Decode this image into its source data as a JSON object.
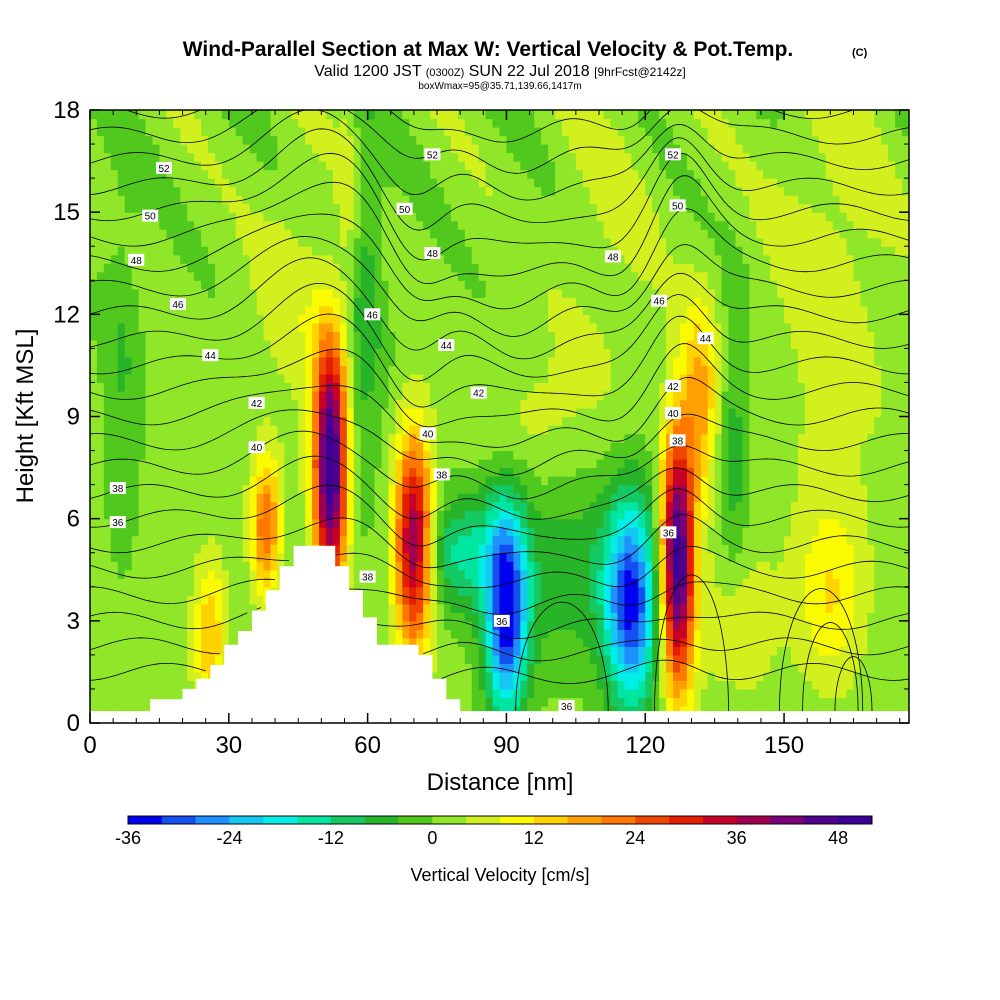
{
  "title": {
    "main": "Wind-Parallel Section at Max W: Vertical Velocity & Pot.Temp.",
    "mark": "(C)",
    "valid_prefix": "Valid 1200 JST ",
    "valid_z": "(0300Z)",
    "valid_date": " SUN 22 Jul 2018 ",
    "valid_fcst": "[9hrFcst@2142z]",
    "box_info": "boxWmax=95@35.71,139.66,1417m"
  },
  "chart_data": {
    "type": "heatmap",
    "xlabel": "Distance [nm]",
    "ylabel": "Height [Kft MSL]",
    "xlim": [
      0,
      177
    ],
    "ylim": [
      0,
      18
    ],
    "xticks": [
      "0",
      "30",
      "60",
      "90",
      "120",
      "150"
    ],
    "yticks": [
      "0",
      "3",
      "6",
      "9",
      "12",
      "15",
      "18"
    ],
    "colorbar": {
      "label": "Vertical Velocity [cm/s]",
      "range": [
        -36,
        52
      ],
      "step": 4,
      "tick_labels": [
        "-36",
        "-24",
        "-12",
        "0",
        "12",
        "24",
        "36",
        "48"
      ],
      "colors": [
        "#0000f0",
        "#1450f0",
        "#1e90ff",
        "#14c8f0",
        "#00eee6",
        "#00e6a0",
        "#14c864",
        "#28b428",
        "#50c81e",
        "#90e628",
        "#d2f01e",
        "#fafa00",
        "#ffd200",
        "#ffa000",
        "#ff7800",
        "#f04600",
        "#e61e00",
        "#c80028",
        "#a00050",
        "#780078",
        "#50008c",
        "#3c0096"
      ]
    },
    "terrain_profile_kft": [
      [
        0,
        0.35
      ],
      [
        13,
        0.35
      ],
      [
        13,
        0.7
      ],
      [
        20,
        0.7
      ],
      [
        20,
        1.0
      ],
      [
        23,
        1.0
      ],
      [
        23,
        1.3
      ],
      [
        26,
        1.3
      ],
      [
        26,
        1.7
      ],
      [
        29,
        1.7
      ],
      [
        29,
        2.3
      ],
      [
        32,
        2.3
      ],
      [
        32,
        2.7
      ],
      [
        35,
        2.7
      ],
      [
        35,
        3.3
      ],
      [
        38,
        3.3
      ],
      [
        38,
        3.9
      ],
      [
        41,
        3.9
      ],
      [
        41,
        4.6
      ],
      [
        44,
        4.6
      ],
      [
        44,
        5.2
      ],
      [
        53,
        5.2
      ],
      [
        53,
        4.6
      ],
      [
        56,
        4.6
      ],
      [
        56,
        3.9
      ],
      [
        59,
        3.9
      ],
      [
        59,
        3.1
      ],
      [
        62,
        3.1
      ],
      [
        62,
        2.3
      ],
      [
        71,
        2.3
      ],
      [
        71,
        2.0
      ],
      [
        74,
        2.0
      ],
      [
        74,
        1.3
      ],
      [
        77,
        1.3
      ],
      [
        77,
        0.7
      ],
      [
        80,
        0.7
      ],
      [
        80,
        0.35
      ],
      [
        177,
        0.35
      ]
    ],
    "vertical_velocity_cells": [
      {
        "x": 52,
        "z": 7.6,
        "sx": 2.5,
        "sz": 2.6,
        "w": 52
      },
      {
        "x": 38,
        "z": 5.8,
        "sx": 2.2,
        "sz": 1.4,
        "w": 22
      },
      {
        "x": 26,
        "z": 2.5,
        "sx": 2.5,
        "sz": 1.6,
        "w": 14
      },
      {
        "x": 70,
        "z": 5.3,
        "sx": 2.8,
        "sz": 2.2,
        "w": 40
      },
      {
        "x": 90,
        "z": 3.3,
        "sx": 3.2,
        "sz": 2.2,
        "w": -36
      },
      {
        "x": 80,
        "z": 5.0,
        "sx": 6.0,
        "sz": 1.2,
        "w": -14
      },
      {
        "x": 117,
        "z": 3.5,
        "sx": 4.0,
        "sz": 2.2,
        "w": -33
      },
      {
        "x": 104,
        "z": 4.5,
        "sx": 10.0,
        "sz": 2.0,
        "w": -8
      },
      {
        "x": 127,
        "z": 4.8,
        "sx": 2.5,
        "sz": 2.6,
        "w": 50
      },
      {
        "x": 132,
        "z": 9.5,
        "sx": 2.8,
        "sz": 2.0,
        "w": 16
      },
      {
        "x": 58,
        "z": 12.5,
        "sx": 3.5,
        "sz": 4.0,
        "w": -10
      },
      {
        "x": 56,
        "z": 14.5,
        "sx": 2.0,
        "sz": 3.0,
        "w": 9
      },
      {
        "x": 44,
        "z": 12.5,
        "sx": 6.0,
        "sz": 2.5,
        "w": 5
      },
      {
        "x": 96,
        "z": 9.0,
        "sx": 8.0,
        "sz": 1.4,
        "w": 4
      },
      {
        "x": 160,
        "z": 3.8,
        "sx": 5.0,
        "sz": 1.8,
        "w": 10
      },
      {
        "x": 140,
        "z": 3.0,
        "sx": 6.0,
        "sz": 1.6,
        "w": 6
      },
      {
        "x": 7,
        "z": 10.5,
        "sx": 3.0,
        "sz": 4.0,
        "w": -5
      },
      {
        "x": 160,
        "z": 13.0,
        "sx": 9.0,
        "sz": 5.0,
        "w": 5
      },
      {
        "x": 112,
        "z": 14.0,
        "sx": 8.0,
        "sz": 4.0,
        "w": 3
      },
      {
        "x": 139,
        "z": 8.0,
        "sx": 2.5,
        "sz": 3.0,
        "w": -8
      }
    ],
    "potential_temperature": {
      "levels_c": [
        30,
        31,
        32,
        33,
        34,
        35,
        36,
        37,
        38,
        39,
        40,
        41,
        42,
        43,
        44,
        45,
        46,
        47,
        48,
        49,
        50,
        51,
        52,
        53,
        54
      ],
      "labels": [
        {
          "text": "52",
          "x": 16,
          "z": 16.3
        },
        {
          "text": "50",
          "x": 13,
          "z": 14.9
        },
        {
          "text": "48",
          "x": 10,
          "z": 13.6
        },
        {
          "text": "46",
          "x": 19,
          "z": 12.3
        },
        {
          "text": "44",
          "x": 26,
          "z": 10.8
        },
        {
          "text": "42",
          "x": 36,
          "z": 9.4
        },
        {
          "text": "40",
          "x": 36,
          "z": 8.1
        },
        {
          "text": "38",
          "x": 6,
          "z": 6.9
        },
        {
          "text": "36",
          "x": 6,
          "z": 5.9
        },
        {
          "text": "52",
          "x": 74,
          "z": 16.7
        },
        {
          "text": "50",
          "x": 68,
          "z": 15.1
        },
        {
          "text": "48",
          "x": 74,
          "z": 13.8
        },
        {
          "text": "46",
          "x": 61,
          "z": 12.0
        },
        {
          "text": "44",
          "x": 77,
          "z": 11.1
        },
        {
          "text": "42",
          "x": 84,
          "z": 9.7
        },
        {
          "text": "40",
          "x": 73,
          "z": 8.5
        },
        {
          "text": "38",
          "x": 76,
          "z": 7.3
        },
        {
          "text": "38",
          "x": 60,
          "z": 4.3
        },
        {
          "text": "36",
          "x": 89,
          "z": 3.0
        },
        {
          "text": "36",
          "x": 103,
          "z": 0.5
        },
        {
          "text": "48",
          "x": 113,
          "z": 13.7
        },
        {
          "text": "52",
          "x": 126,
          "z": 16.7
        },
        {
          "text": "50",
          "x": 127,
          "z": 15.2
        },
        {
          "text": "46",
          "x": 123,
          "z": 12.4
        },
        {
          "text": "44",
          "x": 133,
          "z": 11.3
        },
        {
          "text": "42",
          "x": 126,
          "z": 9.9
        },
        {
          "text": "40",
          "x": 126,
          "z": 9.1
        },
        {
          "text": "38",
          "x": 127,
          "z": 8.3
        },
        {
          "text": "36",
          "x": 125,
          "z": 5.6
        }
      ]
    }
  }
}
